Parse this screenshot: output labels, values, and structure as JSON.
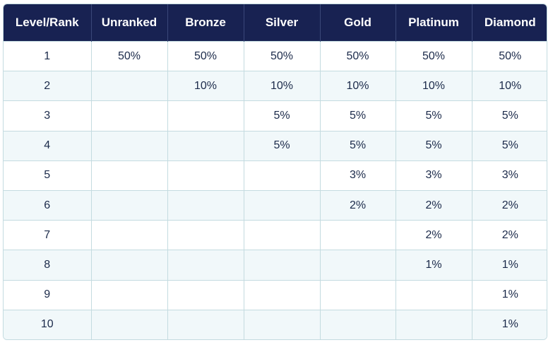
{
  "table": {
    "headers": [
      "Level/Rank",
      "Unranked",
      "Bronze",
      "Silver",
      "Gold",
      "Platinum",
      "Diamond"
    ],
    "rows": [
      [
        "1",
        "50%",
        "50%",
        "50%",
        "50%",
        "50%",
        "50%"
      ],
      [
        "2",
        "",
        "10%",
        "10%",
        "10%",
        "10%",
        "10%"
      ],
      [
        "3",
        "",
        "",
        "5%",
        "5%",
        "5%",
        "5%"
      ],
      [
        "4",
        "",
        "",
        "5%",
        "5%",
        "5%",
        "5%"
      ],
      [
        "5",
        "",
        "",
        "",
        "3%",
        "3%",
        "3%"
      ],
      [
        "6",
        "",
        "",
        "",
        "2%",
        "2%",
        "2%"
      ],
      [
        "7",
        "",
        "",
        "",
        "",
        "2%",
        "2%"
      ],
      [
        "8",
        "",
        "",
        "",
        "",
        "1%",
        "1%"
      ],
      [
        "9",
        "",
        "",
        "",
        "",
        "",
        "1%"
      ],
      [
        "10",
        "",
        "",
        "",
        "",
        "",
        "1%"
      ]
    ]
  },
  "colors": {
    "header_bg": "#182252",
    "header_text": "#ffffff",
    "alt_row_bg": "#f1f8fa",
    "border": "#c4dbe0",
    "cell_text": "#1b2a4a"
  }
}
